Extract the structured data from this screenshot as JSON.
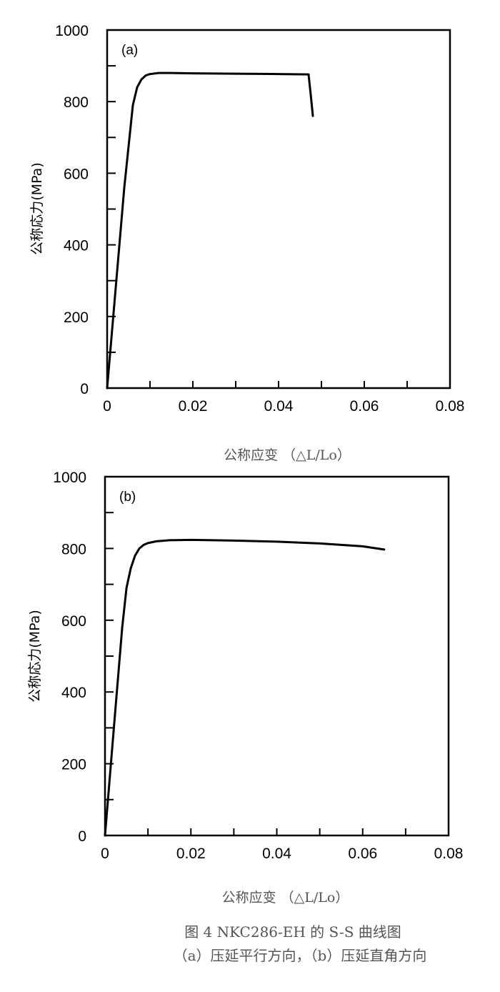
{
  "figure": {
    "caption_title": "图 4 NKC286-EH 的 S-S 曲线图",
    "caption_subtitle": "（a）压延平行方向，（b）压延直角方向"
  },
  "chart_data": [
    {
      "type": "line",
      "panel_label": "(a)",
      "xlabel": "公称应变 （△L/Lo）",
      "ylabel": "公称応力(MPa)",
      "xlim": [
        0,
        0.08
      ],
      "ylim": [
        0,
        1000
      ],
      "xticks": [
        "0",
        "0.02",
        "0.04",
        "0.06",
        "0.08"
      ],
      "yticks": [
        "0",
        "200",
        "400",
        "600",
        "800",
        "1000"
      ],
      "grid": false,
      "series": [
        {
          "x": [
            0,
            0.002,
            0.004,
            0.006,
            0.007,
            0.008,
            0.009,
            0.01,
            0.012,
            0.015,
            0.02,
            0.03,
            0.04,
            0.047,
            0.0475,
            0.048
          ],
          "y": [
            0,
            280,
            560,
            790,
            840,
            862,
            873,
            877,
            880,
            880,
            879,
            878,
            877,
            876,
            820,
            760
          ]
        }
      ]
    },
    {
      "type": "line",
      "panel_label": "(b)",
      "xlabel": "公称应变 （△L/Lo）",
      "ylabel": "公称応力(MPa)",
      "xlim": [
        0,
        0.08
      ],
      "ylim": [
        0,
        1000
      ],
      "xticks": [
        "0",
        "0.02",
        "0.04",
        "0.06",
        "0.08"
      ],
      "yticks": [
        "0",
        "200",
        "400",
        "600",
        "800",
        "1000"
      ],
      "grid": false,
      "series": [
        {
          "x": [
            0,
            0.002,
            0.004,
            0.005,
            0.006,
            0.007,
            0.008,
            0.009,
            0.01,
            0.012,
            0.015,
            0.02,
            0.03,
            0.04,
            0.05,
            0.06,
            0.065
          ],
          "y": [
            0,
            290,
            580,
            690,
            745,
            780,
            800,
            810,
            815,
            820,
            823,
            824,
            822,
            819,
            814,
            806,
            797
          ]
        }
      ]
    }
  ]
}
